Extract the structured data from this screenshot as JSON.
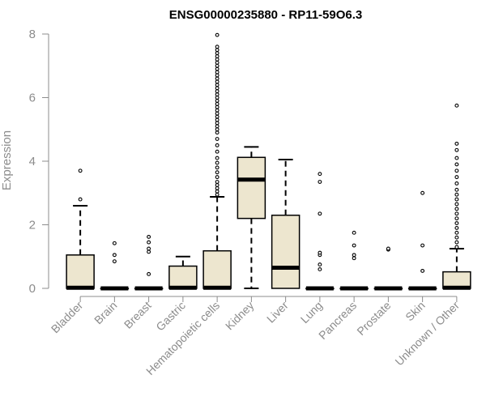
{
  "chart_data": {
    "type": "boxplot",
    "title": "ENSG00000235880 - RP11-59O6.3",
    "xlabel": "",
    "ylabel": "Expression",
    "ylim": [
      0,
      8
    ],
    "yticks": [
      0,
      2,
      4,
      6,
      8
    ],
    "grid": false,
    "categories": [
      "Bladder",
      "Brain",
      "Breast",
      "Gastric",
      "Hematopoietic cells",
      "Kidney",
      "Liver",
      "Lung",
      "Pancreas",
      "Prostate",
      "Skin",
      "Unknown / Other"
    ],
    "box_fill": "#ede6cf",
    "series": [
      {
        "name": "Bladder",
        "min": 0,
        "q1": 0,
        "median": 0.02,
        "q3": 1.05,
        "max": 2.6,
        "outliers": [
          2.8,
          3.7
        ]
      },
      {
        "name": "Brain",
        "min": 0,
        "q1": 0,
        "median": 0,
        "q3": 0,
        "max": 0,
        "outliers": [
          0.85,
          1.05,
          1.42
        ]
      },
      {
        "name": "Breast",
        "min": 0,
        "q1": 0,
        "median": 0,
        "q3": 0,
        "max": 0,
        "outliers": [
          0.45,
          1.15,
          1.25,
          1.45,
          1.62
        ]
      },
      {
        "name": "Gastric",
        "min": 0,
        "q1": 0,
        "median": 0.02,
        "q3": 0.7,
        "max": 1.0,
        "outliers": []
      },
      {
        "name": "Hematopoietic cells",
        "min": 0,
        "q1": 0,
        "median": 0.02,
        "q3": 1.18,
        "max": 2.88,
        "outliers": [
          2.95,
          3.05,
          3.15,
          3.25,
          3.35,
          3.5,
          3.65,
          3.8,
          3.95,
          4.1,
          4.3,
          4.5,
          4.7,
          4.9,
          5.0,
          5.1,
          5.2,
          5.3,
          5.4,
          5.5,
          5.6,
          5.7,
          5.8,
          5.9,
          6.0,
          6.1,
          6.2,
          6.3,
          6.4,
          6.5,
          6.6,
          6.7,
          6.8,
          6.9,
          7.0,
          7.1,
          7.2,
          7.3,
          7.4,
          7.5,
          7.6,
          7.97
        ]
      },
      {
        "name": "Kidney",
        "min": 0,
        "q1": 2.2,
        "median": 3.42,
        "q3": 4.12,
        "max": 4.45,
        "outliers": []
      },
      {
        "name": "Liver",
        "min": 0,
        "q1": 0,
        "median": 0.65,
        "q3": 2.3,
        "max": 4.05,
        "outliers": []
      },
      {
        "name": "Lung",
        "min": 0,
        "q1": 0,
        "median": 0,
        "q3": 0,
        "max": 0,
        "outliers": [
          0.6,
          0.75,
          1.05,
          1.12,
          2.35,
          3.35,
          3.6
        ]
      },
      {
        "name": "Pancreas",
        "min": 0,
        "q1": 0,
        "median": 0,
        "q3": 0,
        "max": 0,
        "outliers": [
          0.95,
          1.05,
          1.35,
          1.75
        ]
      },
      {
        "name": "Prostate",
        "min": 0,
        "q1": 0,
        "median": 0,
        "q3": 0,
        "max": 0,
        "outliers": [
          1.22,
          1.25
        ]
      },
      {
        "name": "Skin",
        "min": 0,
        "q1": 0,
        "median": 0,
        "q3": 0,
        "max": 0,
        "outliers": [
          0.55,
          1.35,
          3.0
        ]
      },
      {
        "name": "Unknown / Other",
        "min": 0,
        "q1": 0,
        "median": 0.02,
        "q3": 0.52,
        "max": 1.25,
        "outliers": [
          1.3,
          1.45,
          1.6,
          1.75,
          1.9,
          2.05,
          2.2,
          2.35,
          2.5,
          2.65,
          2.8,
          2.95,
          3.1,
          3.3,
          3.5,
          3.7,
          3.9,
          4.1,
          4.35,
          4.55,
          5.75
        ]
      }
    ]
  }
}
